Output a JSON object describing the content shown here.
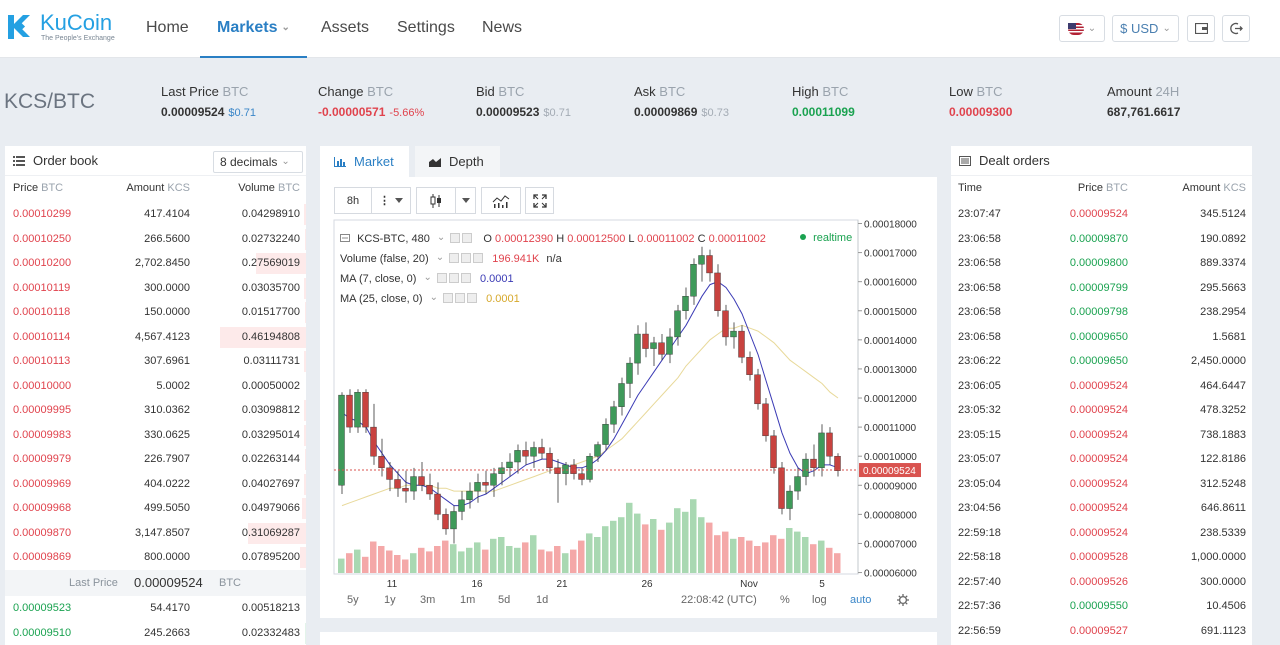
{
  "brand": {
    "name": "KuCoin",
    "tagline": "The People's Exchange"
  },
  "nav": {
    "home": "Home",
    "markets": "Markets",
    "assets": "Assets",
    "settings": "Settings",
    "news": "News"
  },
  "topright": {
    "currency": "$ USD"
  },
  "pair": "KCS/BTC",
  "ticker": {
    "last": {
      "label": "Last Price",
      "unit": "BTC",
      "value": "0.00009524",
      "usd": "$0.71"
    },
    "change": {
      "label": "Change",
      "unit": "BTC",
      "value": "-0.00000571",
      "pct": "-5.66%"
    },
    "bid": {
      "label": "Bid",
      "unit": "BTC",
      "value": "0.00009523",
      "usd": "$0.71"
    },
    "ask": {
      "label": "Ask",
      "unit": "BTC",
      "value": "0.00009869",
      "usd": "$0.73"
    },
    "high": {
      "label": "High",
      "unit": "BTC",
      "value": "0.00011099"
    },
    "low": {
      "label": "Low",
      "unit": "BTC",
      "value": "0.00009300"
    },
    "amount": {
      "label": "Amount",
      "unit": "24H",
      "value": "687,761.6617"
    }
  },
  "orderbook": {
    "title": "Order book",
    "decimals": "8 decimals",
    "headers": {
      "price": "Price",
      "price_unit": "BTC",
      "amount": "Amount",
      "amount_unit": "KCS",
      "volume": "Volume",
      "volume_unit": "BTC"
    },
    "asks": [
      {
        "p": "0.00010299",
        "a": "417.4104",
        "v": "0.04298910",
        "d": 0.02
      },
      {
        "p": "0.00010250",
        "a": "266.5600",
        "v": "0.02732240",
        "d": 0.01
      },
      {
        "p": "0.00010200",
        "a": "2,702.8450",
        "v": "0.27569019",
        "d": 0.42
      },
      {
        "p": "0.00010119",
        "a": "300.0000",
        "v": "0.03035700",
        "d": 0.02
      },
      {
        "p": "0.00010118",
        "a": "150.0000",
        "v": "0.01517700",
        "d": 0.01
      },
      {
        "p": "0.00010114",
        "a": "4,567.4123",
        "v": "0.46194808",
        "d": 0.72
      },
      {
        "p": "0.00010113",
        "a": "307.6961",
        "v": "0.03111731",
        "d": 0.02
      },
      {
        "p": "0.00010000",
        "a": "5.0002",
        "v": "0.00050002",
        "d": 0.0
      },
      {
        "p": "0.00009995",
        "a": "310.0362",
        "v": "0.03098812",
        "d": 0.02
      },
      {
        "p": "0.00009983",
        "a": "330.0625",
        "v": "0.03295014",
        "d": 0.02
      },
      {
        "p": "0.00009979",
        "a": "226.7907",
        "v": "0.02263144",
        "d": 0.01
      },
      {
        "p": "0.00009969",
        "a": "404.0222",
        "v": "0.04027697",
        "d": 0.02
      },
      {
        "p": "0.00009968",
        "a": "499.5050",
        "v": "0.04979066",
        "d": 0.03
      },
      {
        "p": "0.00009870",
        "a": "3,147.8507",
        "v": "0.31069287",
        "d": 0.48
      },
      {
        "p": "0.00009869",
        "a": "800.0000",
        "v": "0.07895200",
        "d": 0.05
      }
    ],
    "last_price_label": "Last Price",
    "last_price": "0.00009524",
    "last_price_unit": "BTC",
    "bids": [
      {
        "p": "0.00009523",
        "a": "54.4170",
        "v": "0.00518213",
        "d": 0.0
      },
      {
        "p": "0.00009510",
        "a": "245.2663",
        "v": "0.02332483",
        "d": 0.01
      }
    ]
  },
  "chart_tabs": {
    "market": "Market",
    "depth": "Depth"
  },
  "chart_toolbar": {
    "interval": "8h"
  },
  "chart_legend": {
    "symbol": "KCS-BTC, 480",
    "o_label": "O",
    "o": "0.00012390",
    "h_label": "H",
    "h": "0.00012500",
    "l_label": "L",
    "l": "0.00011002",
    "c_label": "C",
    "c": "0.00011002",
    "realtime": "realtime",
    "volume_label": "Volume (false, 20)",
    "volume": "196.941K",
    "volume_na": "n/a",
    "ma7_label": "MA (7, close, 0)",
    "ma7": "0.0001",
    "ma25_label": "MA (25, close, 0)",
    "ma25": "0.0001"
  },
  "chart_data": {
    "type": "candlestick",
    "y_ticks": [
      "0.00018000",
      "0.00017000",
      "0.00016000",
      "0.00015000",
      "0.00014000",
      "0.00013000",
      "0.00012000",
      "0.00011000",
      "0.00010000",
      "0.00009000",
      "0.00008000",
      "0.00007000",
      "0.00006000"
    ],
    "x_ticks": [
      "11",
      "16",
      "21",
      "26",
      "Nov",
      "5"
    ],
    "last_price_tag": "0.00009524",
    "price_range": [
      5.95e-05,
      0.0001812
    ],
    "candles": [
      [
        9e-05,
        0.000122,
        8.7e-05,
        0.000121
      ],
      [
        0.000121,
        0.000123,
        0.000108,
        0.00011
      ],
      [
        0.00011,
        0.000123,
        0.000108,
        0.000122
      ],
      [
        0.000122,
        0.000123,
        0.000108,
        0.00011
      ],
      [
        0.00011,
        0.000118,
        9.7e-05,
        0.0001
      ],
      [
        0.0001,
        0.000106,
        9.3e-05,
        9.6e-05
      ],
      [
        9.6e-05,
        9.8e-05,
        8.8e-05,
        9.2e-05
      ],
      [
        9.2e-05,
        9.5e-05,
        8.6e-05,
        8.9e-05
      ],
      [
        8.9e-05,
        9.5e-05,
        8.4e-05,
        8.8e-05
      ],
      [
        8.8e-05,
        9.6e-05,
        8.5e-05,
        9.3e-05
      ],
      [
        9.3e-05,
        9.8e-05,
        8.8e-05,
        9e-05
      ],
      [
        9e-05,
        9.4e-05,
        8.5e-05,
        8.7e-05
      ],
      [
        8.7e-05,
        9.1e-05,
        7.8e-05,
        8e-05
      ],
      [
        8e-05,
        8.2e-05,
        7.3e-05,
        7.5e-05
      ],
      [
        7.5e-05,
        8.3e-05,
        7e-05,
        8.1e-05
      ],
      [
        8.1e-05,
        8.8e-05,
        7.8e-05,
        8.5e-05
      ],
      [
        8.5e-05,
        9.1e-05,
        8.2e-05,
        8.8e-05
      ],
      [
        8.8e-05,
        9.4e-05,
        8.4e-05,
        9.1e-05
      ],
      [
        9.1e-05,
        9.5e-05,
        8.7e-05,
        9e-05
      ],
      [
        9e-05,
        9.6e-05,
        8.6e-05,
        9.4e-05
      ],
      [
        9.4e-05,
        9.8e-05,
        9e-05,
        9.6e-05
      ],
      [
        9.6e-05,
        0.000101,
        9.3e-05,
        9.8e-05
      ],
      [
        9.8e-05,
        0.000104,
        9.4e-05,
        0.000102
      ],
      [
        0.000102,
        0.000105,
        9.7e-05,
        0.0001
      ],
      [
        0.0001,
        0.000105,
        9.6e-05,
        0.000103
      ],
      [
        0.000103,
        0.000106,
        9.9e-05,
        0.000101
      ],
      [
        0.000101,
        0.000103,
        9.4e-05,
        9.6e-05
      ],
      [
        9.6e-05,
        9.9e-05,
        8.4e-05,
        9.4e-05
      ],
      [
        9.4e-05,
        9.8e-05,
        9e-05,
        9.7e-05
      ],
      [
        9.7e-05,
        9.9e-05,
        9.2e-05,
        9.4e-05
      ],
      [
        9.4e-05,
        9.6e-05,
        9e-05,
        9.2e-05
      ],
      [
        9.2e-05,
        0.000101,
        9.1e-05,
        0.0001
      ],
      [
        0.0001,
        0.000105,
        9.8e-05,
        0.000104
      ],
      [
        0.000104,
        0.000113,
        0.000102,
        0.000111
      ],
      [
        0.000111,
        0.000119,
        0.000108,
        0.000117
      ],
      [
        0.000117,
        0.000127,
        0.000114,
        0.000125
      ],
      [
        0.000125,
        0.000134,
        0.00012,
        0.000132
      ],
      [
        0.000132,
        0.000145,
        0.000128,
        0.000142
      ],
      [
        0.000142,
        0.000146,
        0.000134,
        0.000137
      ],
      [
        0.000137,
        0.000141,
        0.000131,
        0.000139
      ],
      [
        0.000139,
        0.000142,
        0.000133,
        0.000135
      ],
      [
        0.000135,
        0.000144,
        0.000132,
        0.000141
      ],
      [
        0.000141,
        0.000152,
        0.000138,
        0.00015
      ],
      [
        0.00015,
        0.000158,
        0.000147,
        0.000155
      ],
      [
        0.000155,
        0.000168,
        0.000152,
        0.000166
      ],
      [
        0.000166,
        0.000172,
        0.00016,
        0.000169
      ],
      [
        0.000169,
        0.000171,
        0.00016,
        0.000163
      ],
      [
        0.000163,
        0.000166,
        0.000148,
        0.00015
      ],
      [
        0.00015,
        0.000152,
        0.000138,
        0.000141
      ],
      [
        0.000141,
        0.000146,
        0.000137,
        0.000143
      ],
      [
        0.000143,
        0.000145,
        0.000132,
        0.000134
      ],
      [
        0.000134,
        0.000136,
        0.000126,
        0.000128
      ],
      [
        0.000128,
        0.00013,
        0.000116,
        0.000118
      ],
      [
        0.000118,
        0.00012,
        0.000105,
        0.000107
      ],
      [
        0.000107,
        0.000109,
        9.4e-05,
        9.6e-05
      ],
      [
        9.6e-05,
        9.8e-05,
        8e-05,
        8.2e-05
      ],
      [
        8.2e-05,
        9e-05,
        7.8e-05,
        8.8e-05
      ],
      [
        8.8e-05,
        9.6e-05,
        8.5e-05,
        9.3e-05
      ],
      [
        9.3e-05,
        0.000101,
        9e-05,
        9.9e-05
      ],
      [
        9.9e-05,
        0.000104,
        9.3e-05,
        9.6e-05
      ],
      [
        9.6e-05,
        0.000111,
        9.3e-05,
        0.000108
      ],
      [
        0.000108,
        0.00011,
        9.7e-05,
        0.0001
      ],
      [
        0.0001,
        0.000101,
        9.3e-05,
        9.5e-05
      ]
    ],
    "volumes": [
      0.16,
      0.22,
      0.26,
      0.18,
      0.35,
      0.3,
      0.25,
      0.2,
      0.15,
      0.22,
      0.28,
      0.24,
      0.3,
      0.36,
      0.32,
      0.24,
      0.28,
      0.34,
      0.26,
      0.38,
      0.4,
      0.3,
      0.28,
      0.34,
      0.42,
      0.26,
      0.24,
      0.3,
      0.22,
      0.26,
      0.36,
      0.44,
      0.4,
      0.52,
      0.58,
      0.62,
      0.78,
      0.66,
      0.54,
      0.6,
      0.48,
      0.56,
      0.72,
      0.68,
      0.82,
      0.62,
      0.56,
      0.42,
      0.46,
      0.38,
      0.4,
      0.36,
      0.3,
      0.34,
      0.42,
      0.38,
      0.5,
      0.46,
      0.4,
      0.32,
      0.36,
      0.28,
      0.22
    ],
    "ma7": [
      0.000115,
      0.000113,
      0.000112,
      0.00011,
      0.000105,
      0.000101,
      9.7e-05,
      9.4e-05,
      9.1e-05,
      9e-05,
      9e-05,
      8.9e-05,
      8.7e-05,
      8.5e-05,
      8.3e-05,
      8.3e-05,
      8.4e-05,
      8.6e-05,
      8.7e-05,
      8.9e-05,
      9.1e-05,
      9.3e-05,
      9.5e-05,
      9.7e-05,
      9.8e-05,
      9.9e-05,
      9.9e-05,
      9.8e-05,
      9.7e-05,
      9.6e-05,
      9.6e-05,
      9.7e-05,
      9.9e-05,
      0.000102,
      0.000106,
      0.000111,
      0.000116,
      0.000121,
      0.000125,
      0.000129,
      0.000133,
      0.000137,
      0.000141,
      0.000145,
      0.00015,
      0.000155,
      0.000159,
      0.00016,
      0.000158,
      0.000154,
      0.000149,
      0.000142,
      0.000135,
      0.000126,
      0.000117,
      0.000108,
      0.000101,
      9.6e-05,
      9.4e-05,
      9.5e-05,
      9.7e-05,
      9.7e-05,
      9.6e-05
    ],
    "ma25": [
      8.3e-05,
      8.4e-05,
      8.5e-05,
      8.6e-05,
      8.7e-05,
      8.8e-05,
      8.9e-05,
      8.9e-05,
      9e-05,
      9e-05,
      9e-05,
      9e-05,
      8.9e-05,
      8.9e-05,
      8.8e-05,
      8.8e-05,
      8.8e-05,
      8.8e-05,
      8.8e-05,
      8.8e-05,
      8.9e-05,
      9e-05,
      9.1e-05,
      9.2e-05,
      9.3e-05,
      9.4e-05,
      9.5e-05,
      9.6e-05,
      9.6e-05,
      9.7e-05,
      9.8e-05,
      9.9e-05,
      0.0001,
      0.000102,
      0.000104,
      0.000106,
      0.000109,
      0.000112,
      0.000115,
      0.000118,
      0.000121,
      0.000124,
      0.000127,
      0.000131,
      0.000134,
      0.000137,
      0.00014,
      0.000142,
      0.000144,
      0.000144,
      0.000145,
      0.000144,
      0.000143,
      0.000141,
      0.000139,
      0.000136,
      0.000133,
      0.000131,
      0.000129,
      0.000127,
      0.000125,
      0.000122,
      0.00012
    ]
  },
  "chart_footer": {
    "ranges": [
      "5y",
      "1y",
      "3m",
      "1m",
      "5d",
      "1d"
    ],
    "time": "22:08:42 (UTC)",
    "pct": "%",
    "log": "log",
    "auto": "auto"
  },
  "deals": {
    "title": "Dealt orders",
    "headers": {
      "time": "Time",
      "price": "Price",
      "price_unit": "BTC",
      "amount": "Amount",
      "amount_unit": "KCS"
    },
    "rows": [
      {
        "t": "23:07:47",
        "p": "0.00009524",
        "a": "345.5124",
        "c": "red"
      },
      {
        "t": "23:06:58",
        "p": "0.00009870",
        "a": "190.0892",
        "c": "green"
      },
      {
        "t": "23:06:58",
        "p": "0.00009800",
        "a": "889.3374",
        "c": "green"
      },
      {
        "t": "23:06:58",
        "p": "0.00009799",
        "a": "295.5663",
        "c": "green"
      },
      {
        "t": "23:06:58",
        "p": "0.00009798",
        "a": "238.2954",
        "c": "green"
      },
      {
        "t": "23:06:58",
        "p": "0.00009650",
        "a": "1.5681",
        "c": "green"
      },
      {
        "t": "23:06:22",
        "p": "0.00009650",
        "a": "2,450.0000",
        "c": "green"
      },
      {
        "t": "23:06:05",
        "p": "0.00009524",
        "a": "464.6447",
        "c": "red"
      },
      {
        "t": "23:05:32",
        "p": "0.00009524",
        "a": "478.3252",
        "c": "red"
      },
      {
        "t": "23:05:15",
        "p": "0.00009524",
        "a": "738.1883",
        "c": "red"
      },
      {
        "t": "23:05:07",
        "p": "0.00009524",
        "a": "122.8186",
        "c": "red"
      },
      {
        "t": "23:05:04",
        "p": "0.00009524",
        "a": "312.5248",
        "c": "red"
      },
      {
        "t": "23:04:56",
        "p": "0.00009524",
        "a": "646.8611",
        "c": "red"
      },
      {
        "t": "22:59:18",
        "p": "0.00009524",
        "a": "238.5339",
        "c": "red"
      },
      {
        "t": "22:58:18",
        "p": "0.00009528",
        "a": "1,000.0000",
        "c": "red"
      },
      {
        "t": "22:57:40",
        "p": "0.00009526",
        "a": "300.0000",
        "c": "red"
      },
      {
        "t": "22:57:36",
        "p": "0.00009550",
        "a": "10.4506",
        "c": "green"
      },
      {
        "t": "22:56:59",
        "p": "0.00009527",
        "a": "691.1123",
        "c": "red"
      }
    ]
  },
  "colors": {
    "accent": "#2a7fc4",
    "up": "#1aa250",
    "down": "#e0434d",
    "candle_up": "#3f9a5a",
    "candle_down": "#c8423f",
    "ma7": "#3b3bb5",
    "ma25": "#e8d99a"
  }
}
